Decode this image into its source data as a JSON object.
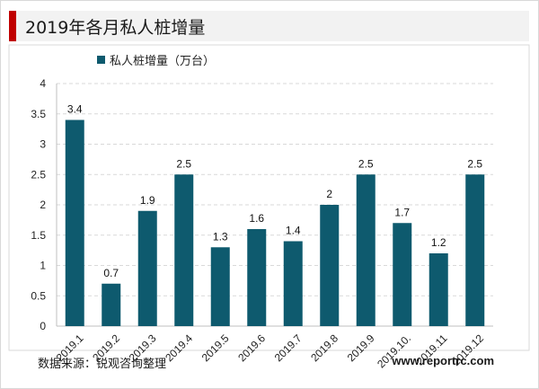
{
  "title": "2019年各月私人桩增量",
  "chart_data": {
    "type": "bar",
    "categories": [
      "2019.1",
      "2019.2",
      "2019.3",
      "2019.4",
      "2019.5",
      "2019.6",
      "2019.7",
      "2019.8",
      "2019.9",
      "2019.10.",
      "2019.11",
      "2019.12"
    ],
    "series": [
      {
        "name": "私人桩增量（万台）",
        "values": [
          3.4,
          0.7,
          1.9,
          2.5,
          1.3,
          1.6,
          1.4,
          2,
          2.5,
          1.7,
          1.2,
          2.5
        ]
      }
    ],
    "data_labels": [
      "3.4",
      "0.7",
      "1.9",
      "2.5",
      "1.3",
      "1.6",
      "1.4",
      "2",
      "2.5",
      "1.7",
      "1.2",
      "2.5"
    ],
    "ylim": [
      0,
      4
    ],
    "yticks": [
      "0",
      "0.5",
      "1",
      "1.5",
      "2",
      "2.5",
      "3",
      "3.5",
      "4"
    ],
    "grid": true,
    "legend_position": "top-left",
    "colors": {
      "bar": "#0e5a6e"
    }
  },
  "footer": {
    "source": "数据来源：锐观咨询整理",
    "site": "www.reportrc.com"
  }
}
